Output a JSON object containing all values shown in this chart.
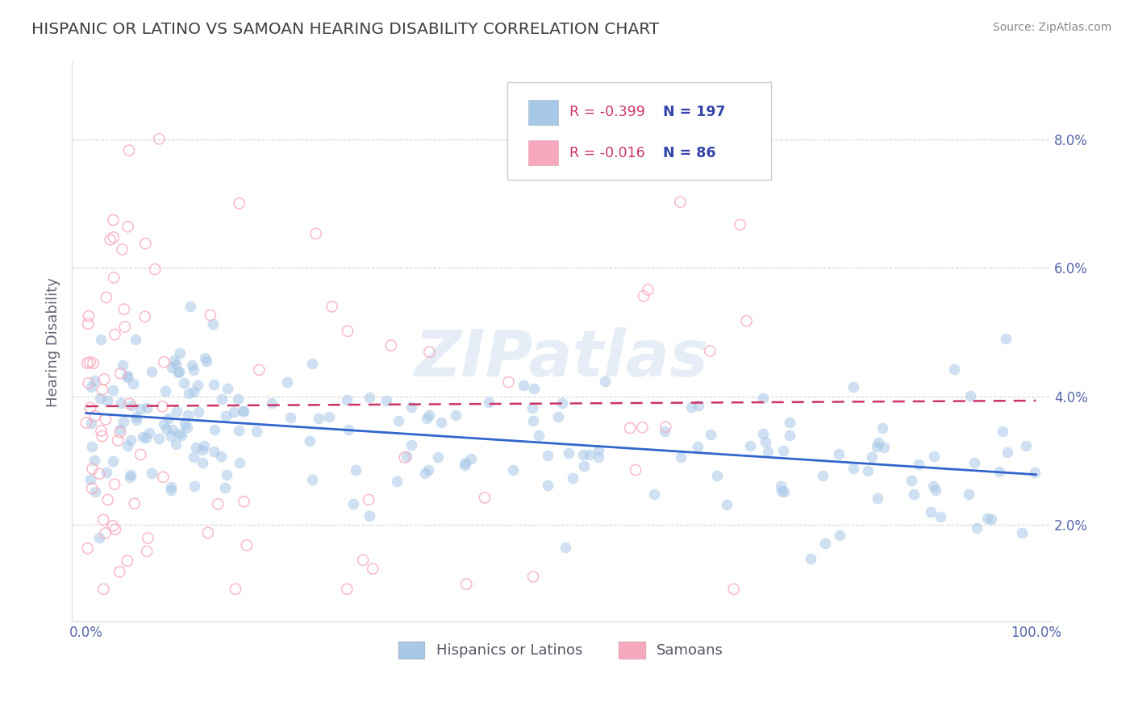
{
  "title": "HISPANIC OR LATINO VS SAMOAN HEARING DISABILITY CORRELATION CHART",
  "source": "Source: ZipAtlas.com",
  "ylabel": "Hearing Disability",
  "watermark": "ZIPatlas",
  "legend_blue_label": "Hispanics or Latinos",
  "legend_pink_label": "Samoans",
  "blue_color": "#a8c8e8",
  "pink_color": "#f8a8bc",
  "trendline_blue_color": "#3366cc",
  "trendline_pink_color": "#cc3366",
  "yticks": [
    0.02,
    0.04,
    0.06,
    0.08
  ],
  "ytick_labels": [
    "2.0%",
    "4.0%",
    "6.0%",
    "8.0%"
  ],
  "xlim": [
    -0.015,
    1.015
  ],
  "ylim": [
    0.005,
    0.092
  ],
  "background_color": "#ffffff",
  "grid_color": "#cccccc",
  "title_color": "#404040",
  "legend_R_color": "#cc3366",
  "legend_N_color": "#3344aa",
  "R_blue": -0.399,
  "N_blue": 197,
  "R_pink": -0.016,
  "N_pink": 86
}
